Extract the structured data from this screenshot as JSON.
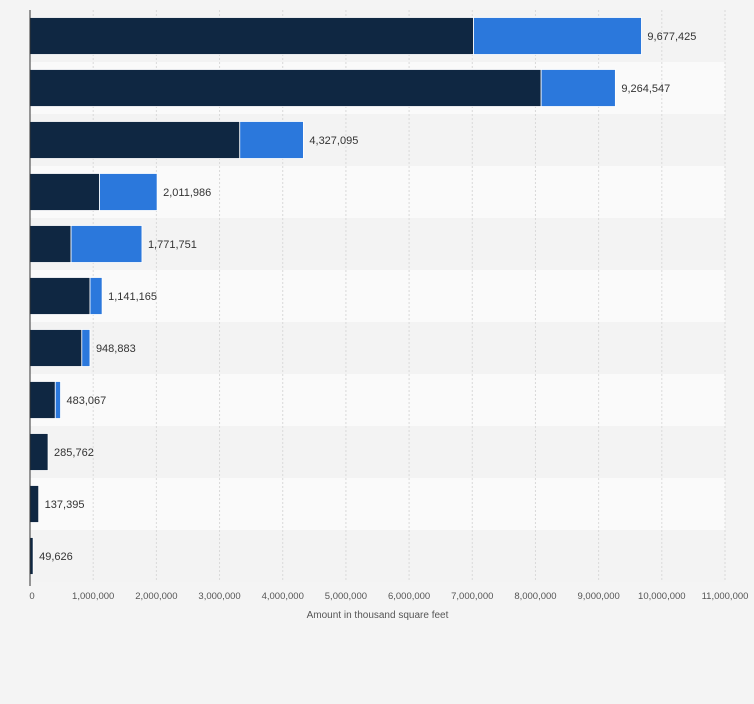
{
  "chart_data": {
    "type": "bar",
    "orientation": "horizontal",
    "stacked": true,
    "categories": [
      "",
      "",
      "",
      "",
      "",
      "",
      "",
      "",
      "",
      "",
      ""
    ],
    "series": [
      {
        "color": "#0f2742",
        "values": [
          7020000,
          8090000,
          3320000,
          1100000,
          650000,
          950000,
          820000,
          400000,
          285762,
          137395,
          49626
        ]
      },
      {
        "color": "#2b78dc",
        "values": [
          2657425,
          1174547,
          1007095,
          911986,
          1121751,
          191165,
          128883,
          83067,
          0,
          0,
          0
        ]
      }
    ],
    "totals": [
      "9,677,425",
      "9,264,547",
      "4,327,095",
      "2,011,986",
      "1,771,751",
      "1,141,165",
      "948,883",
      "483,067",
      "285,762",
      "137,395",
      "49,626"
    ],
    "xlabel": "Amount in thousand square feet",
    "xlim": [
      0,
      11000000
    ],
    "xticks": [
      0,
      1000000,
      2000000,
      3000000,
      4000000,
      5000000,
      6000000,
      7000000,
      8000000,
      9000000,
      10000000,
      11000000
    ],
    "xtick_labels": [
      "0",
      "1,000,000",
      "2,000,000",
      "3,000,000",
      "4,000,000",
      "5,000,000",
      "6,000,000",
      "7,000,000",
      "8,000,000",
      "9,000,000",
      "10,000,000",
      "11,000,000"
    ],
    "grid": true,
    "legend": "none"
  }
}
